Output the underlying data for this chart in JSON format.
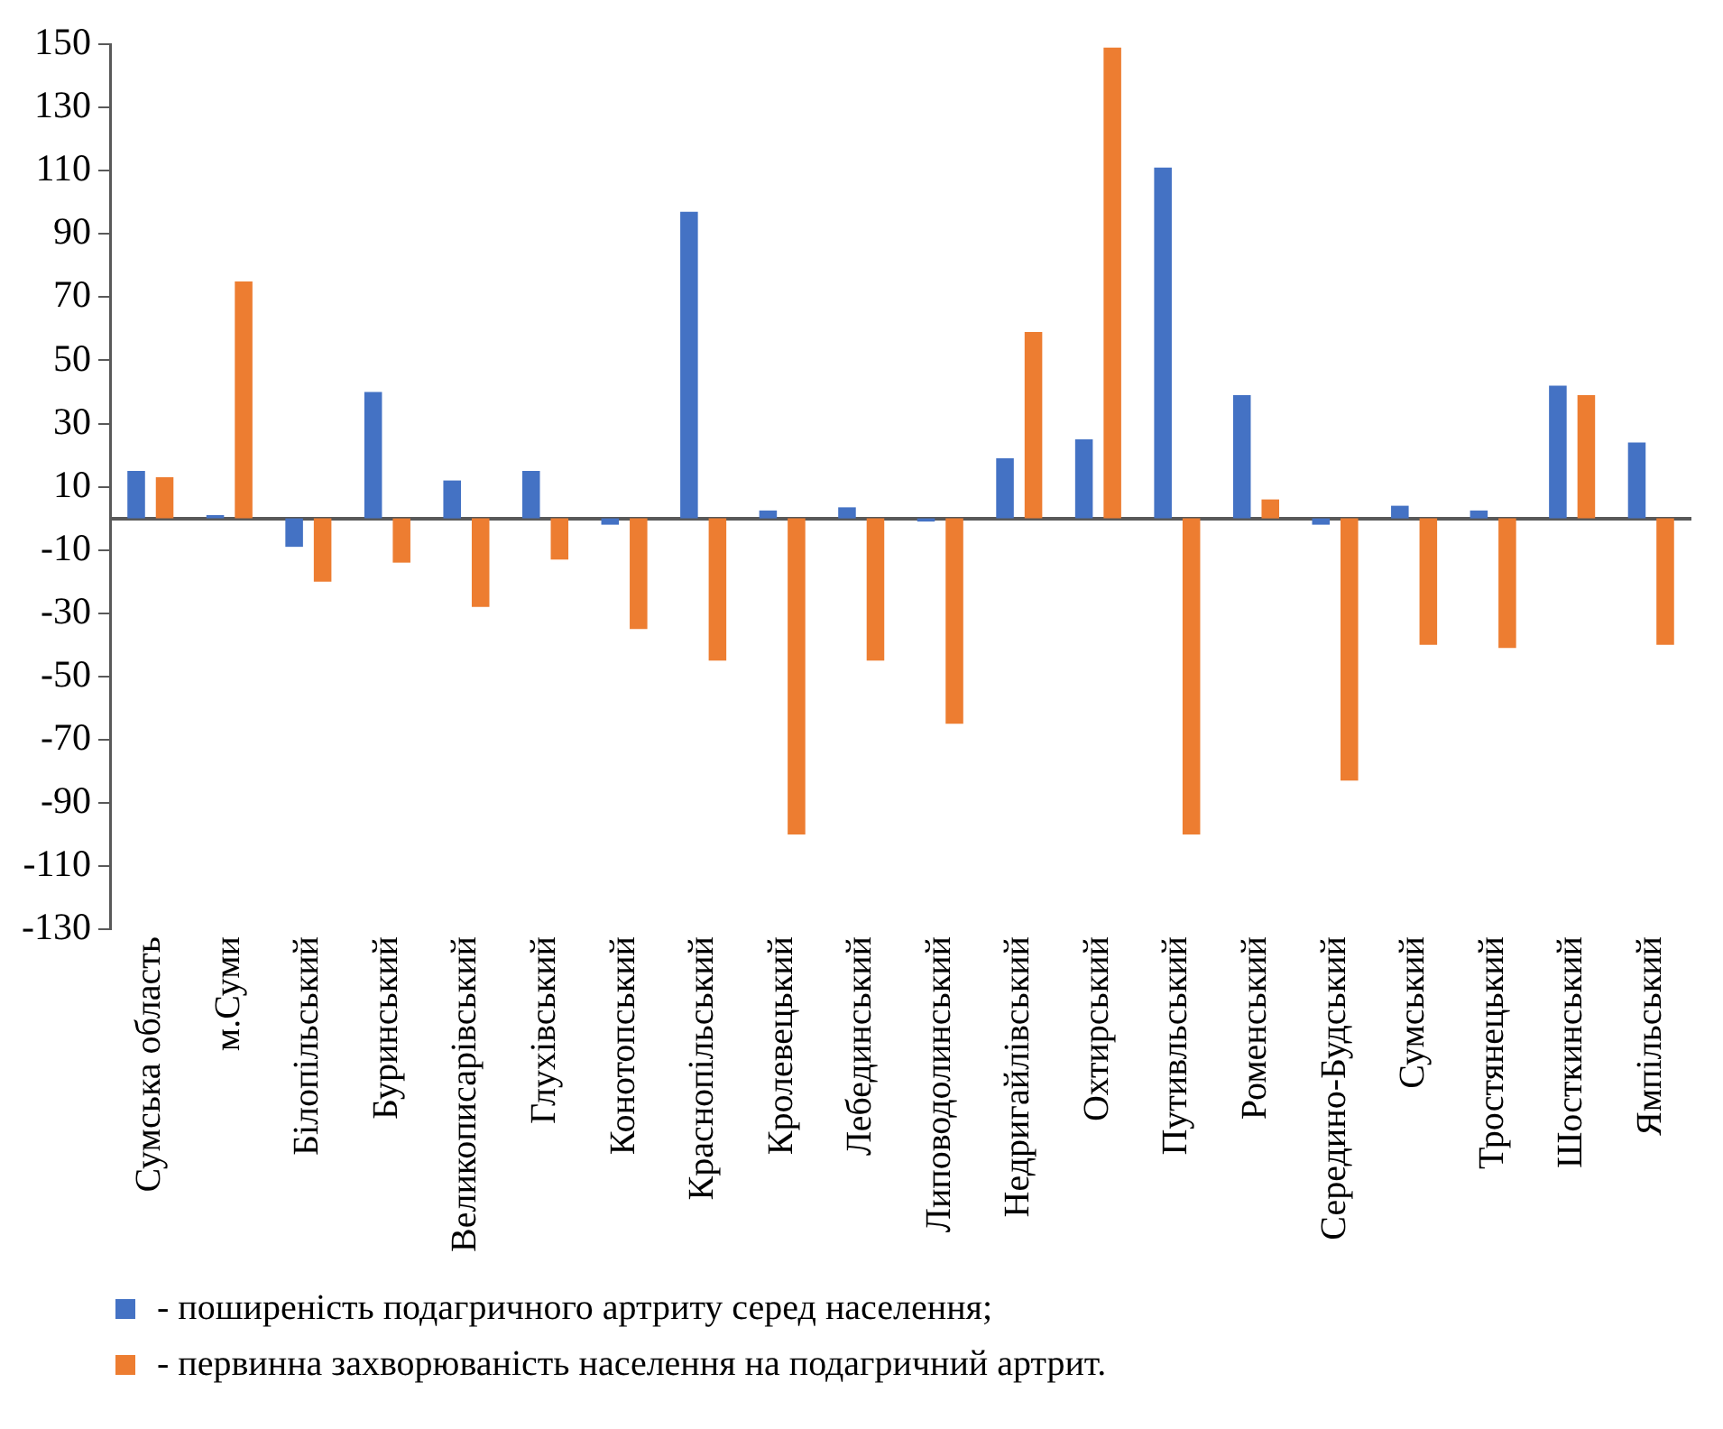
{
  "chart_data": {
    "type": "bar",
    "categories": [
      "Сумська область",
      "м.Суми",
      "Білопільський",
      "Буринський",
      "Великописарівський",
      "Глухівський",
      "Конотопський",
      "Краснопільський",
      "Кролевецький",
      "Лебединський",
      "Липоводолинський",
      "Недригайлівський",
      "Охтирський",
      "Путивльський",
      "Роменський",
      "Середино-Будський",
      "Сумський",
      "Тростянецький",
      "Шосткинський",
      "Ямпільський"
    ],
    "series": [
      {
        "name": "- поширеність подагричного артриту серед населення;",
        "color": "#4472c4",
        "values": [
          15,
          1,
          -9,
          40,
          12,
          15,
          -2,
          97,
          2.5,
          3.5,
          -1,
          19,
          25,
          111,
          39,
          -2,
          4,
          2.5,
          42,
          24
        ]
      },
      {
        "name": "- первинна захворюваність населення на подагричний артрит.",
        "color": "#ed7d31",
        "values": [
          13,
          75,
          -20,
          -14,
          -28,
          -13,
          -35,
          -45,
          -100,
          -45,
          -65,
          59,
          149,
          -100,
          6,
          -83,
          -40,
          -41,
          39,
          -40
        ]
      }
    ],
    "ylim": [
      -130,
      150
    ],
    "yticks": [
      -130,
      -110,
      -90,
      -70,
      -50,
      -30,
      -10,
      10,
      30,
      50,
      70,
      90,
      110,
      130,
      150
    ],
    "grid": false,
    "legend": "bottom"
  }
}
